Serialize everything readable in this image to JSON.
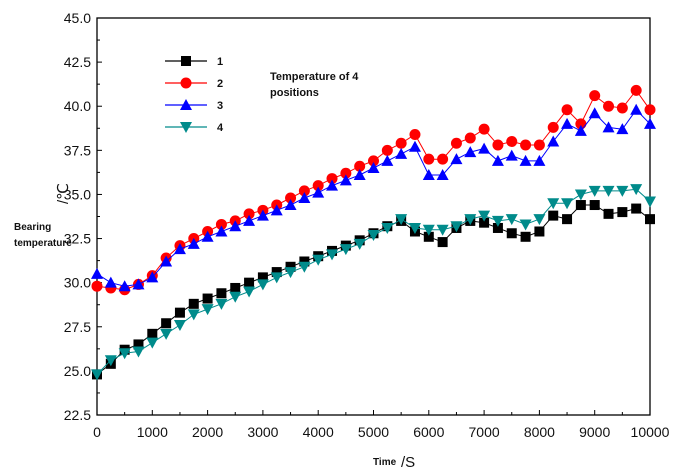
{
  "chart_data": {
    "type": "line",
    "title": "",
    "annotation": [
      "Temperature of 4",
      "positions"
    ],
    "xlabel": "Time",
    "xunit": "/S",
    "ylabel_unit": "/℃",
    "ylabel": [
      "Bearing",
      "temperature"
    ],
    "xlim": [
      0,
      10000
    ],
    "ylim": [
      22.5,
      45.0
    ],
    "x_ticks": [
      0,
      1000,
      2000,
      3000,
      4000,
      5000,
      6000,
      7000,
      8000,
      9000,
      10000
    ],
    "y_ticks": [
      "22.5",
      "25.0",
      "27.5",
      "30.0",
      "32.5",
      "35.0",
      "37.5",
      "40.0",
      "42.5",
      "45.0"
    ],
    "legend_position": "top-left",
    "series": [
      {
        "name": "1",
        "color": "#000000",
        "marker": "square",
        "points": [
          [
            0,
            24.8
          ],
          [
            250,
            25.4
          ],
          [
            500,
            26.2
          ],
          [
            750,
            26.5
          ],
          [
            1000,
            27.1
          ],
          [
            1250,
            27.7
          ],
          [
            1500,
            28.3
          ],
          [
            1750,
            28.8
          ],
          [
            2000,
            29.1
          ],
          [
            2250,
            29.4
          ],
          [
            2500,
            29.7
          ],
          [
            2750,
            30.0
          ],
          [
            3000,
            30.3
          ],
          [
            3250,
            30.6
          ],
          [
            3500,
            30.9
          ],
          [
            3750,
            31.2
          ],
          [
            4000,
            31.5
          ],
          [
            4250,
            31.8
          ],
          [
            4500,
            32.1
          ],
          [
            4750,
            32.4
          ],
          [
            5000,
            32.8
          ],
          [
            5250,
            33.2
          ],
          [
            5500,
            33.5
          ],
          [
            5750,
            32.9
          ],
          [
            6000,
            32.6
          ],
          [
            6250,
            32.3
          ],
          [
            6500,
            33.1
          ],
          [
            6750,
            33.5
          ],
          [
            7000,
            33.4
          ],
          [
            7250,
            33.1
          ],
          [
            7500,
            32.8
          ],
          [
            7750,
            32.6
          ],
          [
            8000,
            32.9
          ],
          [
            8250,
            33.8
          ],
          [
            8500,
            33.6
          ],
          [
            8750,
            34.4
          ],
          [
            9000,
            34.4
          ],
          [
            9250,
            33.9
          ],
          [
            9500,
            34.0
          ],
          [
            9750,
            34.2
          ],
          [
            10000,
            33.6
          ]
        ]
      },
      {
        "name": "2",
        "color": "#ff0000",
        "marker": "circle",
        "points": [
          [
            0,
            29.8
          ],
          [
            250,
            29.7
          ],
          [
            500,
            29.6
          ],
          [
            750,
            29.9
          ],
          [
            1000,
            30.4
          ],
          [
            1250,
            31.4
          ],
          [
            1500,
            32.1
          ],
          [
            1750,
            32.5
          ],
          [
            2000,
            32.9
          ],
          [
            2250,
            33.3
          ],
          [
            2500,
            33.5
          ],
          [
            2750,
            33.9
          ],
          [
            3000,
            34.1
          ],
          [
            3250,
            34.4
          ],
          [
            3500,
            34.8
          ],
          [
            3750,
            35.2
          ],
          [
            4000,
            35.5
          ],
          [
            4250,
            35.9
          ],
          [
            4500,
            36.2
          ],
          [
            4750,
            36.6
          ],
          [
            5000,
            36.9
          ],
          [
            5250,
            37.5
          ],
          [
            5500,
            37.9
          ],
          [
            5750,
            38.4
          ],
          [
            6000,
            37.0
          ],
          [
            6250,
            37.0
          ],
          [
            6500,
            37.9
          ],
          [
            6750,
            38.2
          ],
          [
            7000,
            38.7
          ],
          [
            7250,
            37.8
          ],
          [
            7500,
            38.0
          ],
          [
            7750,
            37.8
          ],
          [
            8000,
            37.8
          ],
          [
            8250,
            38.8
          ],
          [
            8500,
            39.8
          ],
          [
            8750,
            39.0
          ],
          [
            9000,
            40.6
          ],
          [
            9250,
            40.0
          ],
          [
            9500,
            39.9
          ],
          [
            9750,
            40.9
          ],
          [
            10000,
            39.8
          ]
        ]
      },
      {
        "name": "3",
        "color": "#0000ff",
        "marker": "triangle-up",
        "points": [
          [
            0,
            30.5
          ],
          [
            250,
            30.0
          ],
          [
            500,
            29.8
          ],
          [
            750,
            29.9
          ],
          [
            1000,
            30.3
          ],
          [
            1250,
            31.2
          ],
          [
            1500,
            31.9
          ],
          [
            1750,
            32.2
          ],
          [
            2000,
            32.6
          ],
          [
            2250,
            32.9
          ],
          [
            2500,
            33.2
          ],
          [
            2750,
            33.5
          ],
          [
            3000,
            33.8
          ],
          [
            3250,
            34.1
          ],
          [
            3500,
            34.4
          ],
          [
            3750,
            34.8
          ],
          [
            4000,
            35.1
          ],
          [
            4250,
            35.5
          ],
          [
            4500,
            35.8
          ],
          [
            4750,
            36.1
          ],
          [
            5000,
            36.5
          ],
          [
            5250,
            36.9
          ],
          [
            5500,
            37.3
          ],
          [
            5750,
            37.7
          ],
          [
            6000,
            36.1
          ],
          [
            6250,
            36.1
          ],
          [
            6500,
            37.0
          ],
          [
            6750,
            37.4
          ],
          [
            7000,
            37.6
          ],
          [
            7250,
            36.9
          ],
          [
            7500,
            37.2
          ],
          [
            7750,
            36.9
          ],
          [
            8000,
            36.9
          ],
          [
            8250,
            38.0
          ],
          [
            8500,
            39.0
          ],
          [
            8750,
            38.6
          ],
          [
            9000,
            39.6
          ],
          [
            9250,
            38.8
          ],
          [
            9500,
            38.7
          ],
          [
            9750,
            39.8
          ],
          [
            10000,
            39.0
          ]
        ]
      },
      {
        "name": "4",
        "color": "#008b8b",
        "marker": "triangle-down",
        "points": [
          [
            0,
            24.8
          ],
          [
            250,
            25.6
          ],
          [
            500,
            26.0
          ],
          [
            750,
            26.1
          ],
          [
            1000,
            26.6
          ],
          [
            1250,
            27.1
          ],
          [
            1500,
            27.6
          ],
          [
            1750,
            28.2
          ],
          [
            2000,
            28.5
          ],
          [
            2250,
            28.8
          ],
          [
            2500,
            29.2
          ],
          [
            2750,
            29.5
          ],
          [
            3000,
            29.9
          ],
          [
            3250,
            30.3
          ],
          [
            3500,
            30.6
          ],
          [
            3750,
            30.9
          ],
          [
            4000,
            31.3
          ],
          [
            4250,
            31.6
          ],
          [
            4500,
            31.9
          ],
          [
            4750,
            32.2
          ],
          [
            5000,
            32.7
          ],
          [
            5250,
            33.1
          ],
          [
            5500,
            33.6
          ],
          [
            5750,
            33.1
          ],
          [
            6000,
            33.0
          ],
          [
            6250,
            33.0
          ],
          [
            6500,
            33.2
          ],
          [
            6750,
            33.6
          ],
          [
            7000,
            33.8
          ],
          [
            7250,
            33.5
          ],
          [
            7500,
            33.6
          ],
          [
            7750,
            33.3
          ],
          [
            8000,
            33.6
          ],
          [
            8250,
            34.5
          ],
          [
            8500,
            34.5
          ],
          [
            8750,
            35.0
          ],
          [
            9000,
            35.2
          ],
          [
            9250,
            35.2
          ],
          [
            9500,
            35.2
          ],
          [
            9750,
            35.3
          ],
          [
            10000,
            34.6
          ]
        ]
      }
    ]
  }
}
